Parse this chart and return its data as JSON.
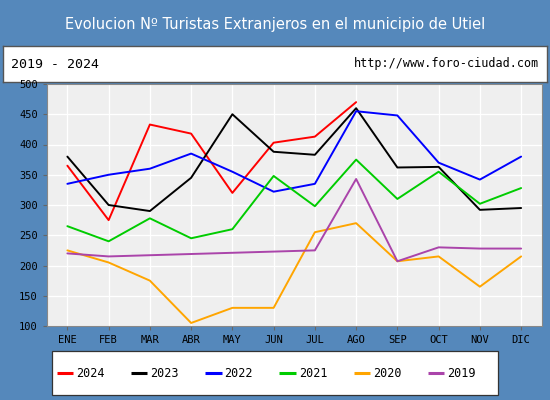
{
  "title": "Evolucion Nº Turistas Extranjeros en el municipio de Utiel",
  "subtitle_left": "2019 - 2024",
  "subtitle_right": "http://www.foro-ciudad.com",
  "months": [
    "ENE",
    "FEB",
    "MAR",
    "ABR",
    "MAY",
    "JUN",
    "JUL",
    "AGO",
    "SEP",
    "OCT",
    "NOV",
    "DIC"
  ],
  "series": {
    "2024": [
      365,
      275,
      433,
      418,
      320,
      403,
      413,
      470,
      null,
      null,
      null,
      null
    ],
    "2023": [
      380,
      300,
      290,
      345,
      450,
      388,
      383,
      460,
      362,
      363,
      292,
      295
    ],
    "2022": [
      335,
      350,
      360,
      385,
      355,
      322,
      335,
      455,
      448,
      370,
      342,
      380
    ],
    "2021": [
      265,
      240,
      278,
      245,
      260,
      348,
      298,
      375,
      310,
      355,
      302,
      328
    ],
    "2020": [
      225,
      205,
      175,
      105,
      130,
      130,
      255,
      270,
      207,
      215,
      165,
      215
    ],
    "2019": [
      220,
      215,
      null,
      null,
      null,
      null,
      225,
      343,
      207,
      230,
      228,
      228
    ]
  },
  "colors": {
    "2024": "#ff0000",
    "2023": "#000000",
    "2022": "#0000ff",
    "2021": "#00cc00",
    "2020": "#ffa500",
    "2019": "#aa44aa"
  },
  "ylim": [
    100,
    500
  ],
  "yticks": [
    100,
    150,
    200,
    250,
    300,
    350,
    400,
    450,
    500
  ],
  "title_bg": "#4a8bc4",
  "title_color": "#ffffff",
  "subtitle_bg": "#ffffff",
  "fig_bg": "#5588bb",
  "plot_bg": "#efefef",
  "grid_color": "#ffffff",
  "border_color": "#aaaaaa",
  "title_fontsize": 10.5,
  "axis_fontsize": 7.5,
  "legend_fontsize": 8.5
}
